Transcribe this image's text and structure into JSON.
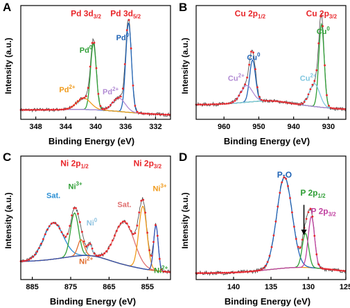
{
  "chart_data": [
    {
      "panel": "A",
      "type": "line",
      "xlabel": "Binding Energy (eV)",
      "ylabel": "Intensity (a.u.)",
      "xlim": [
        350,
        330
      ],
      "xticks": [
        348,
        344,
        340,
        336,
        332
      ],
      "annotations": [
        {
          "text": "Pd 3d",
          "sub": "3/2",
          "color": "#e8262a",
          "x": 341.3,
          "y": 0.95,
          "cls": "ann-main"
        },
        {
          "text": "Pd 3d",
          "sub": "5/2",
          "color": "#e8262a",
          "x": 336.0,
          "y": 0.95,
          "cls": "ann-main"
        },
        {
          "text": "Pd",
          "sup": "0",
          "color": "#2e9e35",
          "x": 341.3,
          "y": 0.6,
          "cls": "ann"
        },
        {
          "text": "Pd",
          "sup": "0",
          "color": "#1f63b5",
          "x": 336.4,
          "y": 0.72,
          "cls": "ann"
        },
        {
          "text": "Pd",
          "sup": "2+",
          "color": "#f09a1a",
          "x": 343.8,
          "y": 0.22,
          "cls": "ann"
        },
        {
          "text": "Pd",
          "sup": "2+",
          "color": "#b18ad3",
          "x": 338.0,
          "y": 0.2,
          "cls": "ann"
        }
      ],
      "components": [
        {
          "name": "Pd0 3d3/2",
          "color": "#2e9e35",
          "center": 340.3,
          "height": 0.64,
          "fwhm": 0.9
        },
        {
          "name": "Pd0 3d5/2",
          "color": "#1f63b5",
          "center": 335.6,
          "height": 0.86,
          "fwhm": 0.9
        },
        {
          "name": "Pd2+ 3d3/2",
          "color": "#f09a1a",
          "center": 341.6,
          "height": 0.11,
          "fwhm": 2.2
        },
        {
          "name": "Pd2+ 3d5/2",
          "color": "#b18ad3",
          "center": 336.9,
          "height": 0.13,
          "fwhm": 2.0
        }
      ],
      "background": {
        "color": "#2bb3c0",
        "left": 0.05,
        "right": 0.0,
        "step": 0.02
      },
      "fit_color": "#e8262a",
      "raw_color": "#555555"
    },
    {
      "panel": "B",
      "type": "line",
      "xlabel": "Binding Energy (eV)",
      "ylabel": "Intensity (a.u.)",
      "xlim": [
        968,
        925
      ],
      "xticks": [
        960,
        950,
        940,
        930
      ],
      "annotations": [
        {
          "text": "Cu 2p",
          "sub": "1/2",
          "color": "#e8262a",
          "x": 952.5,
          "y": 0.95,
          "cls": "ann-main"
        },
        {
          "text": "Cu 2p",
          "sub": "3/2",
          "color": "#e8262a",
          "x": 932.0,
          "y": 0.95,
          "cls": "ann-main"
        },
        {
          "text": "Cu",
          "sup": "0",
          "color": "#1f63b5",
          "x": 951.5,
          "y": 0.53,
          "cls": "ann"
        },
        {
          "text": "Cu",
          "sup": "0",
          "color": "#2e9e35",
          "x": 931.5,
          "y": 0.78,
          "cls": "ann"
        },
        {
          "text": "Cu",
          "sup": "2+",
          "color": "#b18ad3",
          "x": 956.5,
          "y": 0.33,
          "cls": "ann"
        },
        {
          "text": "Cu",
          "sup": "2+",
          "color": "#7fc6df",
          "x": 935.8,
          "y": 0.33,
          "cls": "ann"
        }
      ],
      "components": [
        {
          "name": "Cu0 2p1/2",
          "color": "#1f63b5",
          "center": 951.8,
          "height": 0.4,
          "fwhm": 2.0
        },
        {
          "name": "Cu0 2p3/2",
          "color": "#2e9e35",
          "center": 932.0,
          "height": 0.8,
          "fwhm": 1.8
        },
        {
          "name": "Cu2+ 2p1/2",
          "color": "#b18ad3",
          "center": 953.5,
          "height": 0.16,
          "fwhm": 4.0
        },
        {
          "name": "Cu2+ 2p3/2",
          "color": "#7fc6df",
          "center": 934.0,
          "height": 0.22,
          "fwhm": 3.5
        }
      ],
      "background": {
        "color": "#2e9e35",
        "left": 0.1,
        "right": 0.05,
        "step": 0.05
      },
      "fit_color": "#e8262a",
      "raw_color": "#555555"
    },
    {
      "panel": "C",
      "type": "line",
      "xlabel": "Binding Energy (eV)",
      "ylabel": "Intensity (a.u.)",
      "xlim": [
        888,
        849
      ],
      "xticks": [
        885,
        875,
        865,
        855
      ],
      "annotations": [
        {
          "text": "Ni 2p",
          "sub": "1/2",
          "color": "#e8262a",
          "x": 874.0,
          "y": 0.96,
          "cls": "ann-main"
        },
        {
          "text": "Ni 2p",
          "sub": "3/2",
          "color": "#e8262a",
          "x": 855.0,
          "y": 0.96,
          "cls": "ann-main"
        },
        {
          "text": "Sat.",
          "color": "#2b8fd4",
          "x": 879.5,
          "y": 0.68,
          "cls": "ann"
        },
        {
          "text": "Ni",
          "sup": "3+",
          "color": "#2e9e35",
          "x": 873.8,
          "y": 0.76,
          "cls": "ann"
        },
        {
          "text": "Ni",
          "sup": "0",
          "color": "#8fc3e0",
          "x": 869.5,
          "y": 0.44,
          "cls": "ann"
        },
        {
          "text": "Ni",
          "sup": "2+",
          "color": "#e06b2a",
          "x": 871.0,
          "y": 0.1,
          "cls": "ann"
        },
        {
          "text": "Sat.",
          "color": "#e07070",
          "x": 861.0,
          "y": 0.6,
          "cls": "ann"
        },
        {
          "text": "Ni",
          "sup": "3+",
          "color": "#f09a1a",
          "x": 851.8,
          "y": 0.74,
          "cls": "ann"
        },
        {
          "text": "Ni",
          "sup": "2+",
          "color": "#2e9e35",
          "x": 851.5,
          "y": 0.02,
          "cls": "ann"
        }
      ],
      "components": [
        {
          "name": "Sat. 2p1/2",
          "color": "#2b8fd4",
          "center": 879.5,
          "height": 0.32,
          "fwhm": 6.0
        },
        {
          "name": "Ni3+ 2p1/2",
          "color": "#2e9e35",
          "center": 874.0,
          "height": 0.38,
          "fwhm": 2.5
        },
        {
          "name": "Ni0 2p1/2",
          "color": "#8fc3e0",
          "center": 870.0,
          "height": 0.1,
          "fwhm": 1.5
        },
        {
          "name": "Ni2+ 2p1/2",
          "color": "#e06b2a",
          "center": 872.3,
          "height": 0.14,
          "fwhm": 2.0
        },
        {
          "name": "Sat. 2p3/2",
          "color": "#e07070",
          "center": 861.0,
          "height": 0.38,
          "fwhm": 6.0
        },
        {
          "name": "Ni3+ 2p3/2",
          "color": "#f09a1a",
          "center": 856.2,
          "height": 0.55,
          "fwhm": 2.5
        },
        {
          "name": "Ni2+ 2p3/2",
          "color": "#2e4fb5",
          "center": 852.8,
          "height": 0.4,
          "fwhm": 1.4
        }
      ],
      "background": {
        "color": "#aaaaaa",
        "left": 0.12,
        "right": 0.02,
        "step": 0.08
      },
      "fit_color": "#e8262a",
      "raw_color": "#555555"
    },
    {
      "panel": "D",
      "type": "line",
      "xlabel": "Binding Energy (eV)",
      "ylabel": "Intensity (a.u.)",
      "xlim": [
        145,
        125
      ],
      "xticks": [
        140,
        135,
        130,
        125
      ],
      "annotations": [
        {
          "text": "P-O",
          "color": "#1f63b5",
          "x": 133.2,
          "y": 0.86,
          "cls": "ann-main"
        },
        {
          "text": "P 2p",
          "sub": "1/2",
          "color": "#2e9e35",
          "x": 129.4,
          "y": 0.7,
          "cls": "ann-main"
        },
        {
          "text": "P 2p",
          "sub": "3/2",
          "color": "#c040a0",
          "x": 128.0,
          "y": 0.54,
          "cls": "ann-main"
        }
      ],
      "arrow": {
        "x": 130.6,
        "y_from": 0.62,
        "y_to": 0.36
      },
      "components": [
        {
          "name": "P-O",
          "color": "#1f63b5",
          "center": 133.2,
          "height": 0.8,
          "fwhm": 2.4
        },
        {
          "name": "P 2p1/2",
          "color": "#2e9e35",
          "center": 130.4,
          "height": 0.3,
          "fwhm": 1.0
        },
        {
          "name": "P 2p3/2",
          "color": "#c040a0",
          "center": 129.6,
          "height": 0.45,
          "fwhm": 1.0
        }
      ],
      "background": {
        "color": "#f09a1a",
        "left": 0.02,
        "right": 0.02,
        "step": 0.05
      },
      "fit_color": "#e8262a",
      "raw_color": "#555555"
    }
  ]
}
